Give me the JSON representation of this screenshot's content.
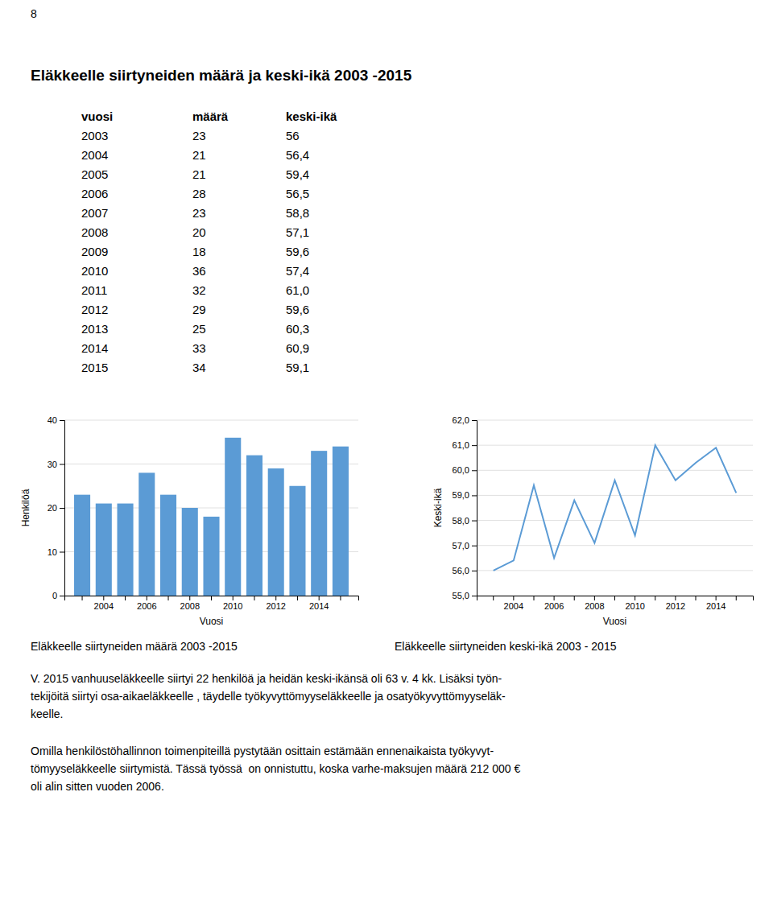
{
  "page_number": "8",
  "title": "Eläkkeelle siirtyneiden määrä ja keski-ikä 2003 -2015",
  "table": {
    "headers": [
      "vuosi",
      "määrä",
      "keski-ikä"
    ],
    "rows": [
      [
        2003,
        23,
        "56"
      ],
      [
        2004,
        21,
        "56,4"
      ],
      [
        2005,
        21,
        "59,4"
      ],
      [
        2006,
        28,
        "56,5"
      ],
      [
        2007,
        23,
        "58,8"
      ],
      [
        2008,
        20,
        "57,1"
      ],
      [
        2009,
        18,
        "59,6"
      ],
      [
        2010,
        36,
        "57,4"
      ],
      [
        2011,
        32,
        "61,0"
      ],
      [
        2012,
        29,
        "59,6"
      ],
      [
        2013,
        25,
        "60,3"
      ],
      [
        2014,
        33,
        "60,9"
      ],
      [
        2015,
        34,
        "59,1"
      ]
    ]
  },
  "chart_data": [
    {
      "type": "bar",
      "title": "Eläkkeelle siirtyneiden määrä 2003 -2015",
      "x_label": "Vuosi",
      "y_label": "Henkilöä",
      "categories": [
        null,
        "2004",
        null,
        "2006",
        null,
        "2008",
        null,
        "2010",
        null,
        "2012",
        null,
        "2014",
        null
      ],
      "values": [
        23,
        21,
        21,
        28,
        23,
        20,
        18,
        36,
        32,
        29,
        25,
        33,
        34
      ],
      "color": "#5b9bd5",
      "ylim": [
        0,
        40
      ],
      "yticks": [
        0,
        10,
        20,
        30,
        40
      ],
      "grid": true
    },
    {
      "type": "line",
      "title": "Eläkkeelle siirtyneiden keski-ikä 2003 - 2015",
      "x_label": "Vuosi",
      "y_label": "Keski-ikä",
      "categories": [
        null,
        "2004",
        null,
        "2006",
        null,
        "2008",
        null,
        "2010",
        null,
        "2012",
        null,
        "2014",
        null
      ],
      "values": [
        56.0,
        56.4,
        59.4,
        56.5,
        58.8,
        57.1,
        59.6,
        57.4,
        61.0,
        59.6,
        60.3,
        60.9,
        59.1
      ],
      "color": "#5b9bd5",
      "ylim": [
        55.0,
        62.0
      ],
      "yticks": [
        {
          "value": 55.0,
          "label": "55,0"
        },
        {
          "value": 56.0,
          "label": "56,0"
        },
        {
          "value": 57.0,
          "label": "57,0"
        },
        {
          "value": 58.0,
          "label": "58,0"
        },
        {
          "value": 59.0,
          "label": "59,0"
        },
        {
          "value": 60.0,
          "label": "60,0"
        },
        {
          "value": 61.0,
          "label": "61,0"
        },
        {
          "value": 62.0,
          "label": "62,0"
        }
      ],
      "grid": true
    }
  ],
  "paragraphs": [
    [
      "V. 2015 vanhuuseläkkeelle siirtyi 22 henkilöä ja heidän keski-ikänsä oli 63 v. 4 kk. Lisäksi työn-",
      "tekijöitä siirtyi osa-aikaeläkkeelle , täydelle työkyvyttömyyseläkkeelle ja osatyökyvyttömyyseläk-",
      "keelle."
    ],
    [
      "Omilla henkilöstöhallinnon toimenpiteillä pystytään osittain estämään ennenaikaista työkyvyt-",
      "tömyyseläkkeelle siirtymistä. Tässä työssä  on onnistuttu, koska varhe-maksujen määrä 212 000 €",
      "oli alin sitten vuoden 2006."
    ]
  ]
}
